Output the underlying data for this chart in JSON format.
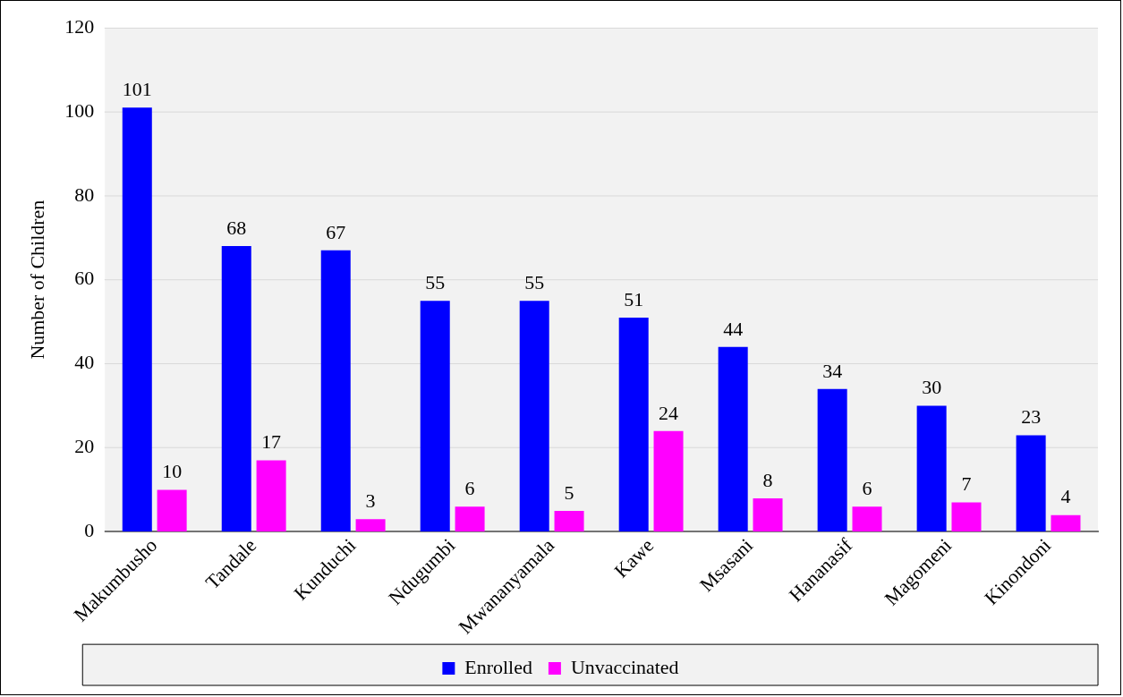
{
  "chart_data": {
    "type": "bar",
    "ylabel": "Number of Children",
    "categories": [
      "Makumbusho",
      "Tandale",
      "Kunduchi",
      "Ndugumbi",
      "Mwananyamala",
      "Kawe",
      "Msasani",
      "Hananasif",
      "Magomeni",
      "Kinondoni"
    ],
    "series": [
      {
        "name": "Enrolled",
        "color": "#0000ff",
        "values": [
          101,
          68,
          67,
          55,
          55,
          51,
          44,
          34,
          30,
          23
        ]
      },
      {
        "name": "Unvaccinated",
        "color": "#ff00ff",
        "values": [
          10,
          17,
          3,
          6,
          5,
          24,
          8,
          6,
          7,
          4
        ]
      }
    ],
    "ylim": [
      0,
      120
    ],
    "yticks": [
      0,
      20,
      40,
      60,
      80,
      100,
      120
    ],
    "grid": "y",
    "legend": "bottom",
    "data_labels": true
  }
}
